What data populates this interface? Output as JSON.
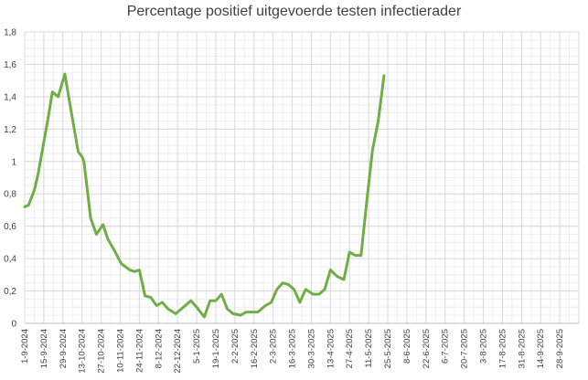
{
  "chart_data": {
    "type": "line",
    "title": "Percentage positief uitgevoerde testen infectierader",
    "xlabel": "",
    "ylabel": "",
    "ylim": [
      0,
      1.8
    ],
    "yticks": [
      "0",
      "0,2",
      "0,4",
      "0,6",
      "0,8",
      "1",
      "1,2",
      "1,4",
      "1,6",
      "1,8"
    ],
    "grid": true,
    "legend": "none",
    "color": "#70ad47",
    "x_tick_labels": [
      "1-9-2024",
      "15-9-2024",
      "29-9-2024",
      "13-10-2024",
      "27-10-2024",
      "10-11-2024",
      "24-11-2024",
      "8-12-2024",
      "22-12-2024",
      "5-1-2025",
      "19-1-2025",
      "2-2-2025",
      "16-2-2025",
      "2-3-2025",
      "16-3-2025",
      "30-3-2025",
      "13-4-2025",
      "27-4-2025",
      "11-5-2025",
      "25-5-2025",
      "8-6-2025",
      "22-6-2025",
      "6-7-2025",
      "20-7-2025",
      "3-8-2025",
      "17-8-2025",
      "31-8-2025",
      "14-9-2025",
      "28-9-2025"
    ],
    "series": [
      {
        "values": [
          [
            0,
            0.72
          ],
          [
            0.2,
            0.73
          ],
          [
            0.5,
            0.82
          ],
          [
            0.7,
            0.92
          ],
          [
            1,
            1.12
          ],
          [
            1.2,
            1.25
          ],
          [
            1.45,
            1.43
          ],
          [
            1.75,
            1.4
          ],
          [
            2.1,
            1.54
          ],
          [
            2.4,
            1.33
          ],
          [
            2.8,
            1.06
          ],
          [
            3.0,
            1.03
          ],
          [
            3.1,
            1.0
          ],
          [
            3.2,
            0.9
          ],
          [
            3.45,
            0.65
          ],
          [
            3.75,
            0.55
          ],
          [
            4.1,
            0.61
          ],
          [
            4.35,
            0.52
          ],
          [
            4.7,
            0.45
          ],
          [
            5.05,
            0.37
          ],
          [
            5.5,
            0.33
          ],
          [
            5.75,
            0.32
          ],
          [
            6.0,
            0.33
          ],
          [
            6.3,
            0.17
          ],
          [
            6.6,
            0.16
          ],
          [
            6.9,
            0.11
          ],
          [
            7.2,
            0.13
          ],
          [
            7.5,
            0.09
          ],
          [
            7.9,
            0.06
          ],
          [
            8.2,
            0.09
          ],
          [
            8.7,
            0.14
          ],
          [
            9.0,
            0.1
          ],
          [
            9.4,
            0.04
          ],
          [
            9.7,
            0.14
          ],
          [
            10.0,
            0.14
          ],
          [
            10.3,
            0.18
          ],
          [
            10.6,
            0.09
          ],
          [
            10.9,
            0.06
          ],
          [
            11.3,
            0.05
          ],
          [
            11.6,
            0.07
          ],
          [
            12.2,
            0.07
          ],
          [
            12.6,
            0.11
          ],
          [
            12.9,
            0.13
          ],
          [
            13.2,
            0.21
          ],
          [
            13.5,
            0.25
          ],
          [
            13.8,
            0.24
          ],
          [
            14.1,
            0.21
          ],
          [
            14.4,
            0.13
          ],
          [
            14.7,
            0.21
          ],
          [
            15.1,
            0.18
          ],
          [
            15.4,
            0.18
          ],
          [
            15.7,
            0.21
          ],
          [
            16.0,
            0.33
          ],
          [
            16.35,
            0.29
          ],
          [
            16.7,
            0.27
          ],
          [
            17.0,
            0.44
          ],
          [
            17.3,
            0.42
          ],
          [
            17.6,
            0.42
          ],
          [
            17.9,
            0.75
          ],
          [
            18.2,
            1.07
          ],
          [
            18.5,
            1.25
          ],
          [
            18.8,
            1.53
          ]
        ]
      }
    ]
  }
}
